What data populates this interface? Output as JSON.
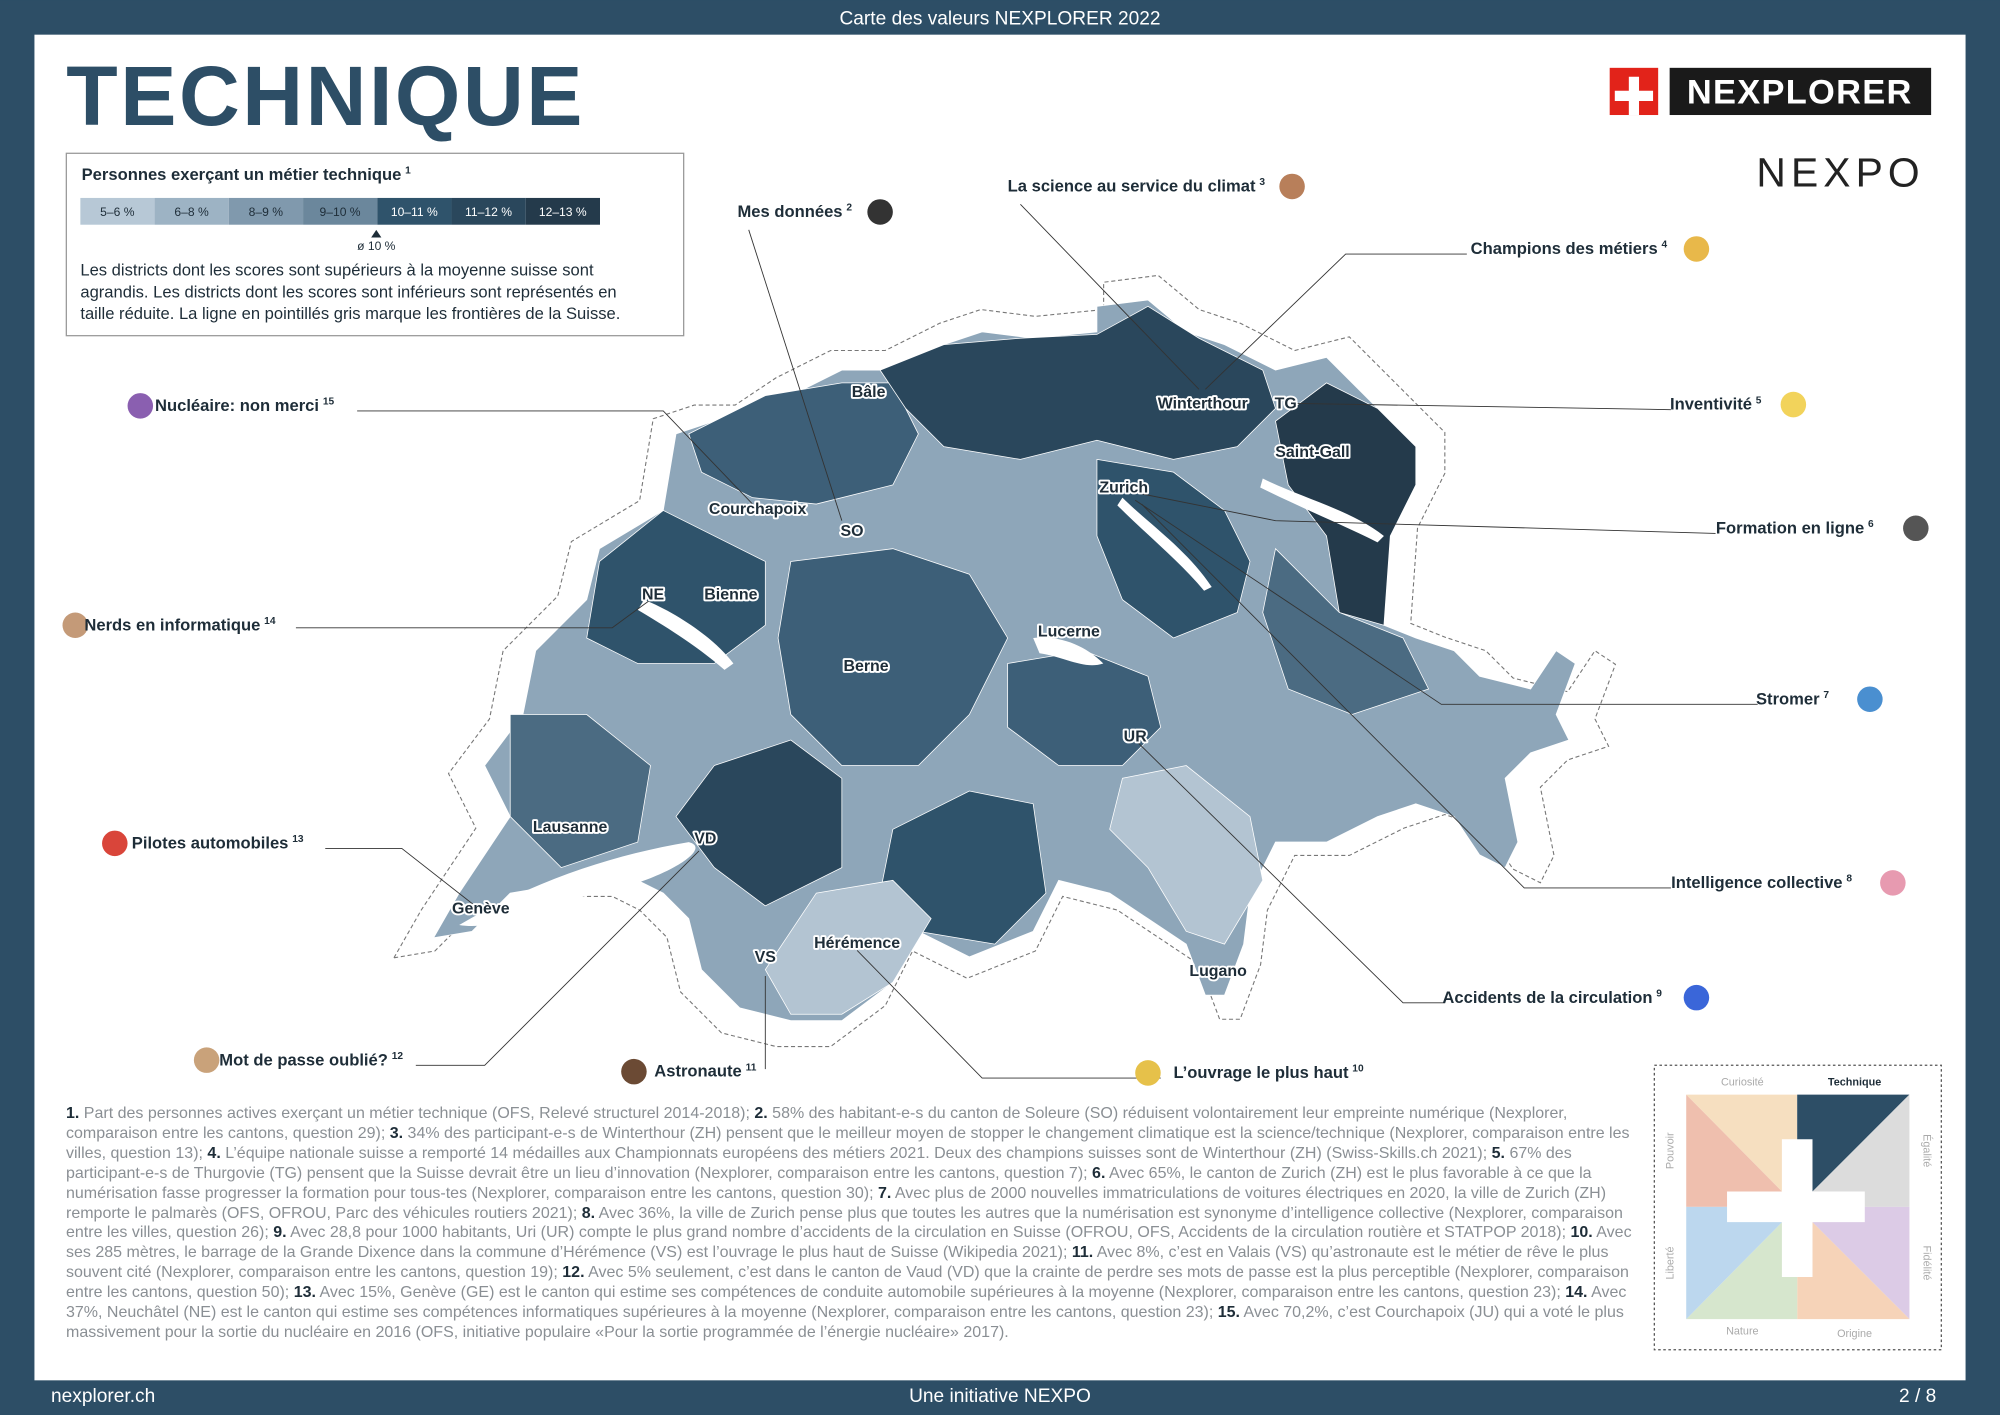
{
  "header": {
    "top_bar": "Carte des valeurs NEXPLORER 2022",
    "title": "TECHNIQUE",
    "logo": "NEXPLORER",
    "logo2": "NEXPO"
  },
  "legend": {
    "title": "Personnes exerçant un métier technique",
    "title_note": "1",
    "bins": [
      "5–6 %",
      "6–8 %",
      "8–9 %",
      "9–10 %",
      "10–11 %",
      "11–12 %",
      "12–13 %"
    ],
    "average": "ø 10 %",
    "description": [
      "Les districts dont les scores sont supérieurs à la moyenne suisse sont",
      "agrandis. Les districts dont les scores sont inférieurs sont représentés en",
      "taille réduite. La ligne en pointillés gris marque les frontières de la Suisse."
    ]
  },
  "places": [
    "Bâle",
    "Winterthour",
    "TG",
    "Saint-Gall",
    "Zurich",
    "Courchapoix",
    "SO",
    "NE",
    "Bienne",
    "Lucerne",
    "Berne",
    "UR",
    "Lausanne",
    "VD",
    "Genève",
    "Hérémence",
    "VS",
    "Lugano"
  ],
  "annotations": [
    {
      "label": "Mes données",
      "note": "2"
    },
    {
      "label": "La science au service du climat",
      "note": "3"
    },
    {
      "label": "Champions des métiers",
      "note": "4"
    },
    {
      "label": "Inventivité",
      "note": "5"
    },
    {
      "label": "Formation en ligne",
      "note": "6"
    },
    {
      "label": "Stromer",
      "note": "7"
    },
    {
      "label": "Intelligence collective",
      "note": "8"
    },
    {
      "label": "Accidents de la circulation",
      "note": "9"
    },
    {
      "label": "L’ouvrage le plus haut",
      "note": "10"
    },
    {
      "label": "Astronaute",
      "note": "11"
    },
    {
      "label": "Mot de passe oublié?",
      "note": "12"
    },
    {
      "label": "Pilotes automobiles",
      "note": "13"
    },
    {
      "label": "Nerds en informatique",
      "note": "14"
    },
    {
      "label": "Nucléaire: non merci",
      "note": "15"
    }
  ],
  "footnotes": [
    {
      "num": "1.",
      "text": "Part des personnes actives exerçant un métier technique (OFS, Relevé structurel 2014-2018);"
    },
    {
      "num": "2.",
      "text": "58% des habitant-e-s du canton de Soleure (SO) réduisent volontairement leur empreinte numérique (Nexplorer, comparaison entre les cantons, question 29);"
    },
    {
      "num": "3.",
      "text": "34% des participant-e-s de Winterthour (ZH) pensent que le meilleur moyen de stopper le changement climatique est la science/technique (Nexplorer, comparaison entre les villes, question 13);"
    },
    {
      "num": "4.",
      "text": "L’équipe nationale suisse a remporté 14 médailles aux Championnats européens des métiers 2021. Deux des champions suisses sont de Winterthour (ZH) (Swiss-Skills.ch 2021);"
    },
    {
      "num": "5.",
      "text": "67% des participant-e-s de Thurgovie (TG) pensent que la Suisse devrait être un lieu d’innovation (Nexplorer, comparaison entre les cantons, question 7);"
    },
    {
      "num": "6.",
      "text": "Avec 65%, le canton de Zurich (ZH) est le plus favorable à ce que la numérisation fasse progresser la formation pour tous-tes (Nexplorer, comparaison entre les cantons, question 30);"
    },
    {
      "num": "7.",
      "text": "Avec plus de 2000 nouvelles immatriculations de voitures électriques en 2020, la ville de Zurich (ZH) remporte le palmarès (OFS, OFROU, Parc des véhicules routiers 2021);"
    },
    {
      "num": "8.",
      "text": "Avec 36%, la ville de Zurich pense plus que toutes les autres que la numérisation est synonyme d’intelligence collective (Nexplorer, comparaison entre les villes, question 26);"
    },
    {
      "num": "9.",
      "text": "Avec 28,8 pour 1000 habitants, Uri (UR) compte le plus grand nombre d’accidents de la circulation en Suisse (OFROU, OFS, Accidents de la circulation routière et STATPOP 2018);"
    },
    {
      "num": "10.",
      "text": "Avec ses 285 mètres, le barrage de la Grande Dixence dans la commune d’Hérémence (VS) est l’ouvrage le plus haut de Suisse (Wikipedia 2021);"
    },
    {
      "num": "11.",
      "text": "Avec 8%, c’est en Valais (VS) qu’astronaute est le métier de rêve le plus souvent cité (Nexplorer, comparaison entre les cantons, question 19);"
    },
    {
      "num": "12.",
      "text": "Avec 5% seulement, c’est dans le canton de Vaud (VD) que la crainte de perdre ses mots de passe est la plus perceptible (Nexplorer, comparaison entre les cantons, question 50);"
    },
    {
      "num": "13.",
      "text": "Avec 15%, Genève (GE) est le canton qui estime ses compétences de conduite automobile supérieures à la moyenne (Nexplorer, comparaison entre les cantons, question 23);"
    },
    {
      "num": "14.",
      "text": "Avec 37%, Neuchâtel (NE) est le canton qui estime ses compétences informatiques supérieures à la moyenne (Nexplorer, comparaison entre les cantons, question 23);"
    },
    {
      "num": "15.",
      "text": "Avec 70,2%, c’est Courchapoix (JU) qui a voté le plus massivement pour la sortie du nucléaire en 2016 (OFS, initiative populaire «Pour la sortie programmée de l’énergie nucléaire» 2017)."
    }
  ],
  "compass": {
    "labels": [
      "Curiosité",
      "Technique",
      "Égalité",
      "Fidélité",
      "Origine",
      "Nature",
      "Liberté",
      "Pouvoir"
    ]
  },
  "footer": {
    "left": "nexplorer.ch",
    "center": "Une initiative NEXPO",
    "right": "2 / 8"
  }
}
